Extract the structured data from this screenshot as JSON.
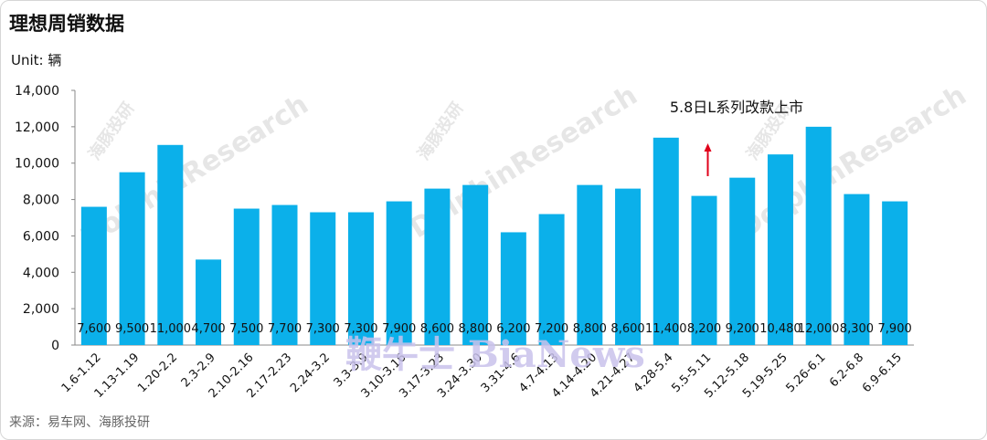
{
  "title": "理想周销数据",
  "unit": "Unit: 辆",
  "source": "来源：易车网、海豚投研",
  "watermark": {
    "dolphin": "DolphinResearch",
    "dolphin_cn": "海豚投研",
    "bianews": "鞭牛士 BiaNews"
  },
  "colors": {
    "bar": "#0bb0ea",
    "arrow": "#e0001a",
    "axis": "#888888"
  },
  "annotation": {
    "text": "5.8日L系列改款上市",
    "category": "5.5-5.11"
  },
  "chart_data": {
    "type": "bar",
    "title": "理想周销数据",
    "ylabel": "Unit: 辆",
    "xlabel": "",
    "ylim": [
      0,
      14000
    ],
    "yticks": [
      "0",
      "2,000",
      "4,000",
      "6,000",
      "8,000",
      "10,000",
      "12,000",
      "14,000"
    ],
    "categories": [
      "1.6-1.12",
      "1.13-1.19",
      "1.20-2.2",
      "2.3-2.9",
      "2.10-2.16",
      "2.17-2.23",
      "2.24-3.2",
      "3.3-3.9",
      "3.10-3.16",
      "3.17-3.23",
      "3.24-3.30",
      "3.31-4.6",
      "4.7-4.13",
      "4.14-4.20",
      "4.21-4.27",
      "4.28-5.4",
      "5.5-5.11",
      "5.12-5.18",
      "5.19-5.25",
      "5.26-6.1",
      "6.2-6.8",
      "6.9-6.15"
    ],
    "values": [
      7600,
      9500,
      11000,
      4700,
      7500,
      7700,
      7300,
      7300,
      7900,
      8600,
      8800,
      6200,
      7200,
      8800,
      8600,
      11400,
      8200,
      9200,
      10480,
      12000,
      8300,
      7900
    ],
    "value_labels": [
      "7,600",
      "9,500",
      "11,000",
      "4,700",
      "7,500",
      "7,700",
      "7,300",
      "7,300",
      "7,900",
      "8,600",
      "8,800",
      "6,200",
      "7,200",
      "8,800",
      "8,600",
      "11,400",
      "8,200",
      "9,200",
      "10,480",
      "12,000",
      "8,300",
      "7,900"
    ],
    "grid": false,
    "legend": "none"
  }
}
